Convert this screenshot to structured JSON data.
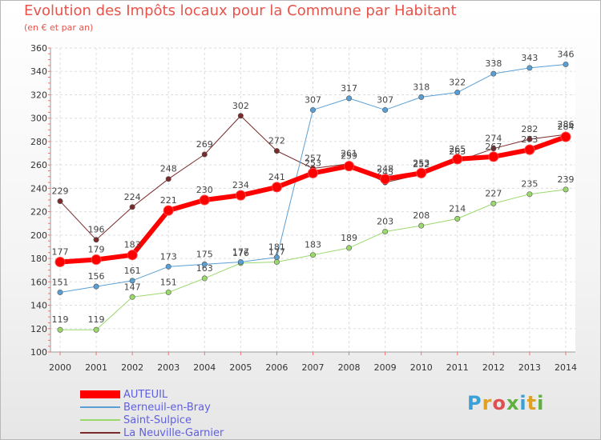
{
  "header": {
    "title": "Evolution des Impôts locaux pour la Commune par Habitant",
    "subtitle": "(en € et par an)"
  },
  "logo": {
    "text": "Proxiti",
    "colors": [
      "#3aa0d8",
      "#e0a020",
      "#e05050",
      "#60b040",
      "#3aa0d8",
      "#e0a020",
      "#60b040"
    ]
  },
  "chart_data": {
    "type": "line",
    "x": [
      "2000",
      "2001",
      "2002",
      "2003",
      "2004",
      "2005",
      "2006",
      "2007",
      "2008",
      "2009",
      "2010",
      "2011",
      "2012",
      "2013",
      "2014"
    ],
    "ylim": [
      100,
      360
    ],
    "yticks": [
      100,
      120,
      140,
      160,
      180,
      200,
      220,
      240,
      260,
      280,
      300,
      320,
      340,
      360
    ],
    "grid": true,
    "legend_position": "bottom-left",
    "series": [
      {
        "name": "La Neuville-Garnier",
        "color": "#7a2a2a",
        "width": 1,
        "values": [
          229,
          196,
          224,
          248,
          269,
          302,
          272,
          257,
          261,
          245,
          252,
          263,
          274,
          282,
          286
        ]
      },
      {
        "name": "Saint-Sulpice",
        "color": "#99d96b",
        "width": 1,
        "values": [
          119,
          119,
          147,
          151,
          163,
          176,
          177,
          183,
          189,
          203,
          208,
          214,
          227,
          235,
          239
        ]
      },
      {
        "name": "Berneuil-en-Bray",
        "color": "#5a9fd4",
        "width": 1,
        "values": [
          151,
          156,
          161,
          173,
          175,
          177,
          181,
          307,
          317,
          307,
          318,
          322,
          338,
          343,
          346
        ]
      },
      {
        "name": "AUTEUIL",
        "color": "#ff0000",
        "width": 6,
        "values": [
          177,
          179,
          183,
          221,
          230,
          234,
          241,
          253,
          259,
          248,
          253,
          265,
          267,
          273,
          284
        ]
      }
    ]
  }
}
